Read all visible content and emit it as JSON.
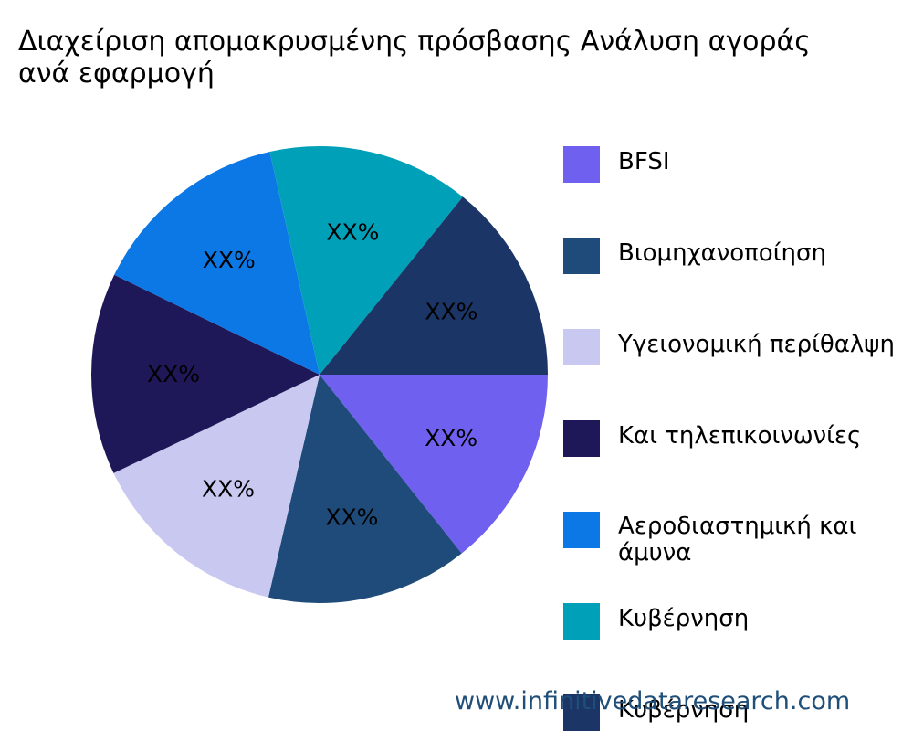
{
  "title_lines": [
    "Διαχείριση απομακρυσμένης πρόσβασης Ανάλυση αγοράς",
    "ανά εφαρμογή"
  ],
  "chart_data": {
    "type": "pie",
    "title": "Διαχείριση απομακρυσμένης πρόσβασης Ανάλυση αγοράς ανά εφαρμογή",
    "legend_position": "right",
    "slices": [
      {
        "label": "BFSI",
        "value": 14.3,
        "data_label": "XX%",
        "color": "#7060f0"
      },
      {
        "label": "Βιομηχανοποίηση",
        "value": 14.3,
        "data_label": "XX%",
        "color": "#1f4b7a"
      },
      {
        "label": "Υγειονομική περίθαλψη",
        "value": 14.3,
        "data_label": "XX%",
        "color": "#c8c8f0"
      },
      {
        "label": "Και τηλεπικοινωνίες",
        "value": 14.3,
        "data_label": "XX%",
        "color": "#1e1858"
      },
      {
        "label": "Αεροδιαστημική και άμυνα",
        "value": 14.3,
        "data_label": "XX%",
        "color": "#0c78e6"
      },
      {
        "label": "Κυβέρνηση",
        "value": 14.3,
        "data_label": "XX%",
        "color": "#00a0b8"
      },
      {
        "label": "Κυβέρνηση",
        "value": 14.2,
        "data_label": "XX%",
        "color": "#1b3566"
      }
    ]
  },
  "legend": [
    {
      "label": "BFSI",
      "color": "#7060f0"
    },
    {
      "label": "Βιομηχανοποίηση",
      "color": "#1f4b7a"
    },
    {
      "label": "Υγειονομική περίθαλψη",
      "color": "#c8c8f0"
    },
    {
      "label": "Και τηλεπικοινωνίες",
      "color": "#1e1858"
    },
    {
      "label": "Αεροδιαστημική και άμυνα",
      "color": "#0c78e6"
    },
    {
      "label": "Κυβέρνηση",
      "color": "#00a0b8"
    },
    {
      "label": "Κυβέρνηση",
      "color": "#1b3566"
    }
  ],
  "watermark": "www.infinitivedataresearch.com"
}
